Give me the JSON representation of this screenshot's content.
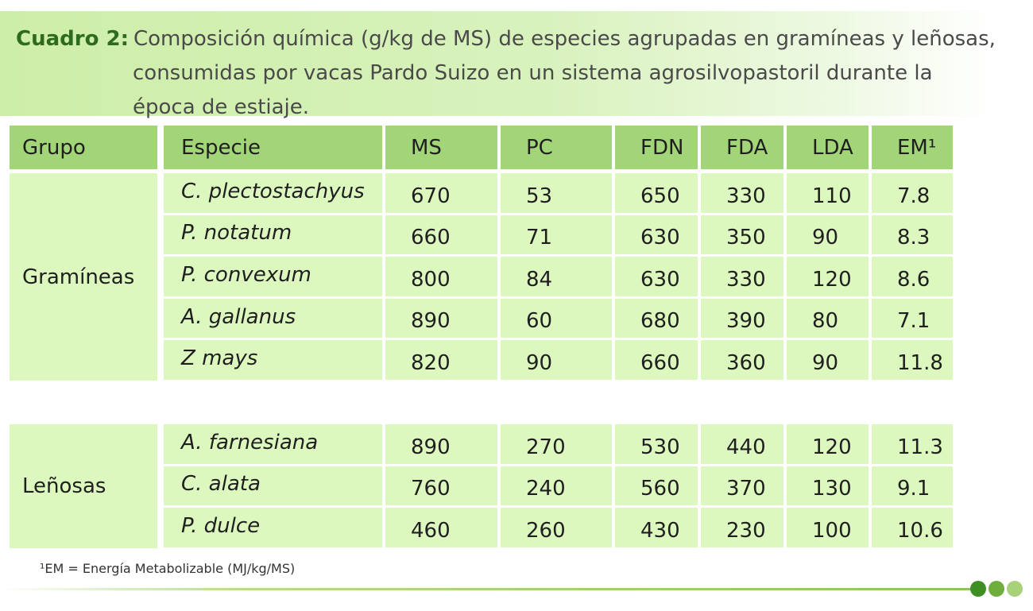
{
  "title": {
    "lead": "Cuadro 2:",
    "line1": "Composición química (g/kg de MS) de especies agrupadas en gramíneas y leñosas,",
    "line2": "consumidas por vacas Pardo Suizo en un sistema agrosilvopastoril durante la",
    "line3": "época de estiaje."
  },
  "table": {
    "headers": [
      "Grupo",
      "Especie",
      "MS",
      "PC",
      "FDN",
      "FDA",
      "LDA",
      "EM¹"
    ],
    "groups": [
      {
        "name": "Gramíneas",
        "rows": [
          {
            "species": "C. plectostachyus",
            "values": [
              "670",
              "53",
              "650",
              "330",
              "110",
              "7.8"
            ]
          },
          {
            "species": "P. notatum",
            "values": [
              "660",
              "71",
              "630",
              "350",
              "90",
              "8.3"
            ]
          },
          {
            "species": "P. convexum",
            "values": [
              "800",
              "84",
              "630",
              "330",
              "120",
              "8.6"
            ]
          },
          {
            "species": "A. gallanus",
            "values": [
              "890",
              "60",
              "680",
              "390",
              "80",
              "7.1"
            ]
          },
          {
            "species": "Z mays",
            "values": [
              "820",
              "90",
              "660",
              "360",
              "90",
              "11.8"
            ]
          }
        ]
      },
      {
        "name": "Leñosas",
        "rows": [
          {
            "species": "A. farnesiana",
            "values": [
              "890",
              "270",
              "530",
              "440",
              "120",
              "11.3"
            ]
          },
          {
            "species": "C. alata",
            "values": [
              "760",
              "240",
              "560",
              "370",
              "130",
              "9.1"
            ]
          },
          {
            "species": "P. dulce",
            "values": [
              "460",
              "260",
              "430",
              "230",
              "100",
              "10.6"
            ]
          }
        ]
      }
    ]
  },
  "footnote": "¹EM = Energía Metabolizable (MJ/kg/MS)",
  "colors": {
    "header_bg": "#a2d478",
    "body_bg": "#dcf8bf",
    "title_lead": "#2f6b1e",
    "dots": [
      "#3e8f22",
      "#6fae3d",
      "#a7d27a"
    ]
  }
}
